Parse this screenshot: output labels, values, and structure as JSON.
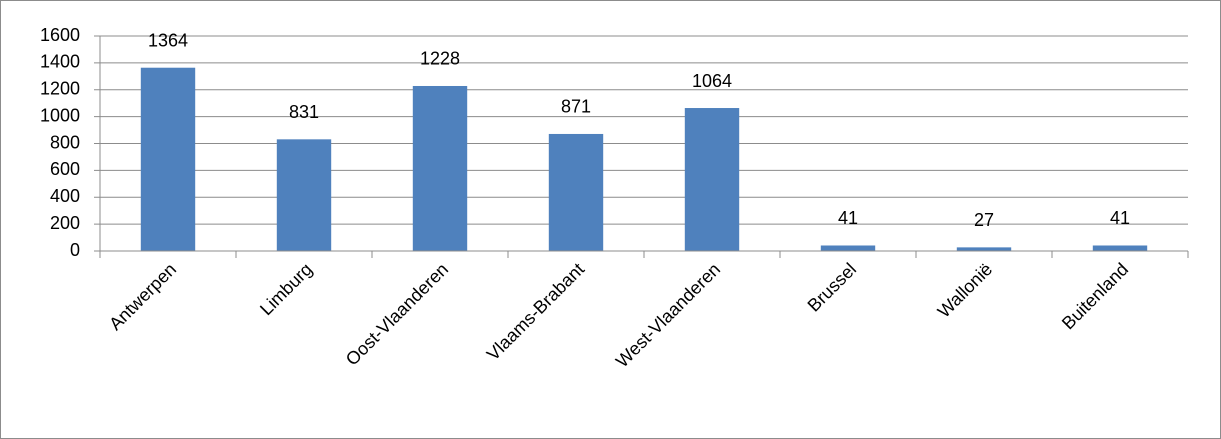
{
  "chart_data": {
    "type": "bar",
    "categories": [
      "Antwerpen",
      "Limburg",
      "Oost-Vlaanderen",
      "Vlaams-Brabant",
      "West-Vlaanderen",
      "Brussel",
      "Wallonië",
      "Buitenland"
    ],
    "values": [
      1364,
      831,
      1228,
      871,
      1064,
      41,
      27,
      41
    ],
    "color": "#4f81bd",
    "ylim": [
      0,
      1600
    ],
    "yticks": [
      0,
      200,
      400,
      600,
      800,
      1000,
      1200,
      1400,
      1600
    ],
    "grid": true
  }
}
